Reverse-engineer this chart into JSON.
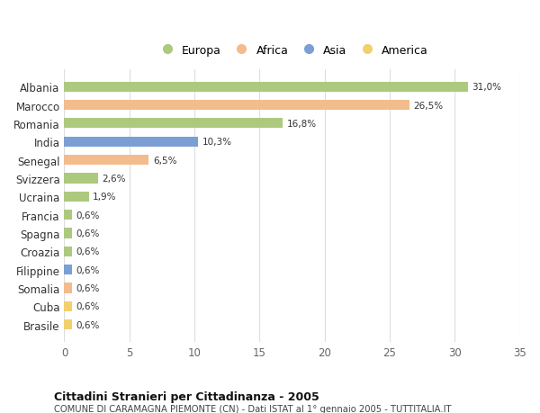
{
  "countries": [
    "Albania",
    "Marocco",
    "Romania",
    "India",
    "Senegal",
    "Svizzera",
    "Ucraina",
    "Francia",
    "Spagna",
    "Croazia",
    "Filippine",
    "Somalia",
    "Cuba",
    "Brasile"
  ],
  "values": [
    31.0,
    26.5,
    16.8,
    10.3,
    6.5,
    2.6,
    1.9,
    0.6,
    0.6,
    0.6,
    0.6,
    0.6,
    0.6,
    0.6
  ],
  "labels": [
    "31,0%",
    "26,5%",
    "16,8%",
    "10,3%",
    "6,5%",
    "2,6%",
    "1,9%",
    "0,6%",
    "0,6%",
    "0,6%",
    "0,6%",
    "0,6%",
    "0,6%",
    "0,6%"
  ],
  "continents": [
    "Europa",
    "Africa",
    "Europa",
    "Asia",
    "Africa",
    "Europa",
    "Europa",
    "Europa",
    "Europa",
    "Europa",
    "Asia",
    "Africa",
    "America",
    "America"
  ],
  "colors": {
    "Europa": "#adc97e",
    "Africa": "#f2bc8d",
    "Asia": "#7b9fd4",
    "America": "#f2d06e"
  },
  "xlim": [
    0,
    35
  ],
  "xticks": [
    0,
    5,
    10,
    15,
    20,
    25,
    30,
    35
  ],
  "title": "Cittadini Stranieri per Cittadinanza - 2005",
  "subtitle": "COMUNE DI CARAMAGNA PIEMONTE (CN) - Dati ISTAT al 1° gennaio 2005 - TUTTITALIA.IT",
  "background_color": "#ffffff",
  "grid_color": "#dddddd",
  "legend_order": [
    "Europa",
    "Africa",
    "Asia",
    "America"
  ]
}
